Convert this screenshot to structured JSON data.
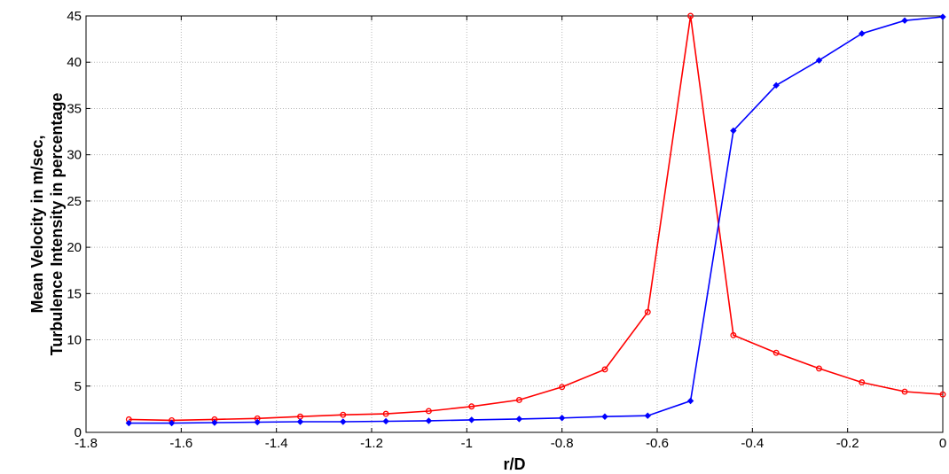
{
  "chart_data": {
    "type": "line",
    "title": "",
    "xlabel": "r/D",
    "ylabel_lines": [
      "Mean Velocity in m/sec,",
      "Turbulence Intensity in percentage"
    ],
    "xlim": [
      -1.8,
      0
    ],
    "ylim": [
      0,
      45
    ],
    "grid": true,
    "x_ticks": [
      -1.8,
      -1.6,
      -1.4,
      -1.2,
      -1,
      -0.8,
      -0.6,
      -0.4,
      -0.2,
      0
    ],
    "x_tick_labels": [
      "-1.8",
      "-1.6",
      "-1.4",
      "-1.2",
      "-1",
      "-0.8",
      "-0.6",
      "-0.4",
      "-0.2",
      "0"
    ],
    "y_ticks": [
      0,
      5,
      10,
      15,
      20,
      25,
      30,
      35,
      40,
      45
    ],
    "y_tick_labels": [
      "0",
      "5",
      "10",
      "15",
      "20",
      "25",
      "30",
      "35",
      "40",
      "45"
    ],
    "series": [
      {
        "color": "#ff0000",
        "marker": "circle",
        "x": [
          -1.71,
          -1.62,
          -1.53,
          -1.44,
          -1.35,
          -1.26,
          -1.17,
          -1.08,
          -0.99,
          -0.89,
          -0.8,
          -0.71,
          -0.62,
          -0.53,
          -0.44,
          -0.35,
          -0.26,
          -0.17,
          -0.08,
          0
        ],
        "y": [
          1.4,
          1.3,
          1.4,
          1.5,
          1.7,
          1.9,
          2.0,
          2.3,
          2.8,
          3.5,
          4.9,
          6.8,
          13.0,
          45.0,
          10.5,
          8.6,
          6.9,
          5.4,
          4.4,
          4.1
        ]
      },
      {
        "color": "#0000ff",
        "marker": "diamond",
        "x": [
          -1.71,
          -1.62,
          -1.53,
          -1.44,
          -1.35,
          -1.26,
          -1.17,
          -1.08,
          -0.99,
          -0.89,
          -0.8,
          -0.71,
          -0.62,
          -0.53,
          -0.44,
          -0.35,
          -0.26,
          -0.17,
          -0.08,
          0
        ],
        "y": [
          1.0,
          1.0,
          1.05,
          1.1,
          1.15,
          1.15,
          1.2,
          1.25,
          1.35,
          1.45,
          1.55,
          1.7,
          1.8,
          3.4,
          32.6,
          37.5,
          40.2,
          43.1,
          44.5,
          44.9
        ]
      }
    ]
  }
}
